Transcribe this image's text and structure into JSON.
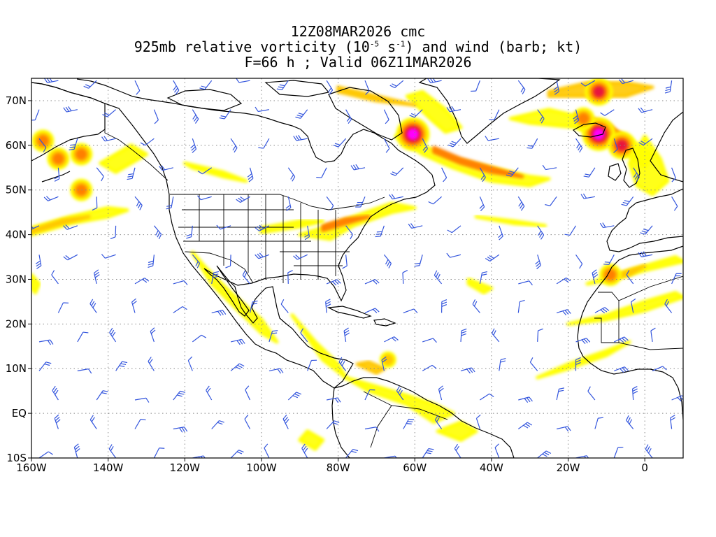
{
  "title": {
    "line1": "12Z08MAR2026 cmc",
    "line2_prefix": "925mb relative vorticity (10",
    "line2_exp1": "-5",
    "line2_mid": " s",
    "line2_exp2": "-1",
    "line2_suffix": ") and wind (barb; kt)",
    "line3": "F=66 h ; Valid 06Z11MAR2026"
  },
  "map": {
    "projection": "cylindrical",
    "lon_range": [
      -160,
      10
    ],
    "lat_range": [
      -10,
      75
    ],
    "lon_ticks": [
      {
        "value": -160,
        "label": "160W"
      },
      {
        "value": -140,
        "label": "140W"
      },
      {
        "value": -120,
        "label": "120W"
      },
      {
        "value": -100,
        "label": "100W"
      },
      {
        "value": -80,
        "label": "80W"
      },
      {
        "value": -60,
        "label": "60W"
      },
      {
        "value": -40,
        "label": "40W"
      },
      {
        "value": -20,
        "label": "20W"
      },
      {
        "value": 0,
        "label": "0"
      }
    ],
    "lat_ticks": [
      {
        "value": -10,
        "label": "10S"
      },
      {
        "value": 0,
        "label": "EQ"
      },
      {
        "value": 10,
        "label": "10N"
      },
      {
        "value": 20,
        "label": "20N"
      },
      {
        "value": 30,
        "label": "30N"
      },
      {
        "value": 40,
        "label": "40N"
      },
      {
        "value": 50,
        "label": "50N"
      },
      {
        "value": 60,
        "label": "60N"
      },
      {
        "value": 70,
        "label": "70N"
      }
    ],
    "grid": "dotted",
    "colors": {
      "coast": "#000000",
      "barb": "#3355dd",
      "shade_low": "#ffff00",
      "shade_mid": "#ffc800",
      "shade_high": "#ff7f00",
      "shade_vhigh": "#e8183c",
      "shade_max": "#ff00ff"
    },
    "vorticity_bands": [
      {
        "level": 1,
        "points": [
          [
            -160,
            40
          ],
          [
            -150,
            42.5
          ],
          [
            -140,
            44
          ],
          [
            -135,
            45.5
          ],
          [
            -140,
            46
          ],
          [
            -150,
            44
          ],
          [
            -160,
            41.5
          ]
        ]
      },
      {
        "level": 2,
        "points": [
          [
            -160,
            40.5
          ],
          [
            -152,
            42.5
          ],
          [
            -145,
            44
          ],
          [
            -152,
            43.2
          ],
          [
            -160,
            41
          ]
        ]
      },
      {
        "level": 1,
        "points": [
          [
            -82,
            39
          ],
          [
            -76,
            42
          ],
          [
            -66,
            45
          ],
          [
            -60,
            46
          ],
          [
            -66,
            47
          ],
          [
            -76,
            44
          ],
          [
            -86,
            41
          ],
          [
            -90,
            40
          ]
        ]
      },
      {
        "level": 3,
        "points": [
          [
            -84,
            41
          ],
          [
            -78,
            42.5
          ],
          [
            -72,
            44
          ],
          [
            -78,
            43.5
          ],
          [
            -84,
            42
          ]
        ]
      },
      {
        "level": 1,
        "points": [
          [
            -100,
            41.5
          ],
          [
            -90,
            43
          ],
          [
            -84,
            43
          ],
          [
            -90,
            41.8
          ],
          [
            -100,
            40.5
          ]
        ]
      },
      {
        "level": 1,
        "points": [
          [
            -63,
            63
          ],
          [
            -58,
            60
          ],
          [
            -50,
            57
          ],
          [
            -40,
            55
          ],
          [
            -30,
            53
          ],
          [
            -25,
            52.5
          ],
          [
            -30,
            51
          ],
          [
            -40,
            52
          ],
          [
            -50,
            55
          ],
          [
            -58,
            58
          ],
          [
            -65,
            62
          ]
        ]
      },
      {
        "level": 3,
        "points": [
          [
            -55,
            59.5
          ],
          [
            -48,
            57
          ],
          [
            -40,
            55
          ],
          [
            -32,
            53
          ],
          [
            -40,
            54
          ],
          [
            -48,
            56
          ],
          [
            -55,
            58.5
          ]
        ]
      },
      {
        "level": 1,
        "points": [
          [
            -58,
            72
          ],
          [
            -52,
            68
          ],
          [
            -48,
            64
          ],
          [
            -52,
            63
          ],
          [
            -56,
            66
          ],
          [
            -62,
            71
          ]
        ]
      },
      {
        "level": 2,
        "points": [
          [
            -80,
            73
          ],
          [
            -70,
            71
          ],
          [
            -60,
            69
          ],
          [
            -70,
            70
          ],
          [
            -80,
            72
          ]
        ]
      },
      {
        "level": 1,
        "points": [
          [
            -35,
            66
          ],
          [
            -25,
            68
          ],
          [
            -15,
            66
          ],
          [
            -5,
            62
          ],
          [
            2,
            58
          ],
          [
            0,
            55
          ],
          [
            -8,
            60
          ],
          [
            -18,
            64
          ],
          [
            -30,
            65
          ]
        ]
      },
      {
        "level": 2,
        "points": [
          [
            -25,
            72
          ],
          [
            -15,
            74
          ],
          [
            -5,
            74
          ],
          [
            2,
            73
          ],
          [
            -5,
            71
          ],
          [
            -15,
            71
          ],
          [
            -25,
            71
          ]
        ]
      },
      {
        "level": 3,
        "points": [
          [
            -18,
            67
          ],
          [
            -10,
            65
          ],
          [
            -4,
            61
          ],
          [
            -8,
            62
          ],
          [
            -14,
            65
          ]
        ]
      },
      {
        "level": 1,
        "points": [
          [
            0,
            62
          ],
          [
            4,
            57
          ],
          [
            6,
            52
          ],
          [
            2,
            49
          ],
          [
            -2,
            51
          ],
          [
            -4,
            56
          ]
        ]
      },
      {
        "level": 1,
        "points": [
          [
            -118,
            36
          ],
          [
            -113,
            29
          ],
          [
            -106,
            23
          ],
          [
            -100,
            18
          ],
          [
            -96,
            16
          ],
          [
            -100,
            21
          ],
          [
            -108,
            27
          ],
          [
            -115,
            33
          ]
        ]
      },
      {
        "level": 1,
        "points": [
          [
            -92,
            22
          ],
          [
            -88,
            17
          ],
          [
            -84,
            12
          ],
          [
            -78,
            8
          ],
          [
            -80,
            11
          ],
          [
            -86,
            16
          ],
          [
            -90,
            20
          ]
        ]
      },
      {
        "level": 1,
        "points": [
          [
            -78,
            8
          ],
          [
            -70,
            6
          ],
          [
            -62,
            4
          ],
          [
            -55,
            2
          ],
          [
            -50,
            0
          ],
          [
            -55,
            -2
          ],
          [
            -62,
            2
          ],
          [
            -72,
            5
          ]
        ]
      },
      {
        "level": 2,
        "points": [
          [
            -75,
            11
          ],
          [
            -70,
            9
          ],
          [
            -68,
            10
          ],
          [
            -72,
            11.5
          ]
        ]
      },
      {
        "level": 1,
        "points": [
          [
            -28,
            8
          ],
          [
            -20,
            10
          ],
          [
            -10,
            13
          ],
          [
            -4,
            16
          ],
          [
            -10,
            14
          ],
          [
            -20,
            11
          ]
        ]
      },
      {
        "level": 1,
        "points": [
          [
            -15,
            29
          ],
          [
            -8,
            31
          ],
          [
            0,
            33
          ],
          [
            8,
            35
          ],
          [
            10,
            34
          ],
          [
            0,
            32
          ],
          [
            -8,
            30
          ]
        ]
      },
      {
        "level": 2,
        "points": [
          [
            -10,
            30
          ],
          [
            -4,
            32
          ],
          [
            0,
            33
          ],
          [
            -4,
            31
          ]
        ]
      },
      {
        "level": 1,
        "points": [
          [
            -20,
            20
          ],
          [
            -10,
            22
          ],
          [
            0,
            25
          ],
          [
            8,
            27
          ],
          [
            10,
            26
          ],
          [
            0,
            23
          ],
          [
            -10,
            21
          ]
        ]
      },
      {
        "level": 1,
        "points": [
          [
            -160,
            31
          ],
          [
            -158,
            29
          ],
          [
            -159,
            27
          ],
          [
            -160,
            28
          ]
        ]
      },
      {
        "level": 1,
        "points": [
          [
            -88,
            -4
          ],
          [
            -84,
            -6
          ],
          [
            -86,
            -8
          ],
          [
            -90,
            -6
          ]
        ]
      },
      {
        "level": 1,
        "points": [
          [
            -54,
            -4
          ],
          [
            -48,
            -6
          ],
          [
            -44,
            -4
          ],
          [
            -48,
            -2
          ]
        ]
      },
      {
        "level": 1,
        "points": [
          [
            -142,
            56
          ],
          [
            -134,
            60
          ],
          [
            -130,
            58
          ],
          [
            -138,
            54
          ]
        ]
      },
      {
        "level": 1,
        "points": [
          [
            -120,
            56
          ],
          [
            -110,
            54
          ],
          [
            -104,
            52
          ],
          [
            -110,
            53
          ],
          [
            -118,
            55
          ]
        ]
      },
      {
        "level": 1,
        "points": [
          [
            -44,
            44
          ],
          [
            -34,
            43
          ],
          [
            -26,
            42
          ],
          [
            -34,
            42.5
          ]
        ]
      },
      {
        "level": 1,
        "points": [
          [
            -46,
            30
          ],
          [
            -40,
            28
          ],
          [
            -42,
            27
          ],
          [
            -46,
            29
          ]
        ]
      }
    ],
    "vorticity_spots": [
      {
        "lon": -153,
        "lat": 57,
        "level": 3
      },
      {
        "lon": -147,
        "lat": 58,
        "level": 3
      },
      {
        "lon": -147,
        "lat": 50,
        "level": 3
      },
      {
        "lon": -157,
        "lat": 61,
        "level": 3
      },
      {
        "lon": -60.5,
        "lat": 62.5,
        "level": 5
      },
      {
        "lon": -12,
        "lat": 62.5,
        "level": 5
      },
      {
        "lon": -12,
        "lat": 72,
        "level": 4
      },
      {
        "lon": -6,
        "lat": 60,
        "level": 4
      },
      {
        "lon": -16,
        "lat": 66,
        "level": 3
      },
      {
        "lon": -9,
        "lat": 31,
        "level": 3
      },
      {
        "lon": -67,
        "lat": 12,
        "level": 2
      }
    ]
  }
}
